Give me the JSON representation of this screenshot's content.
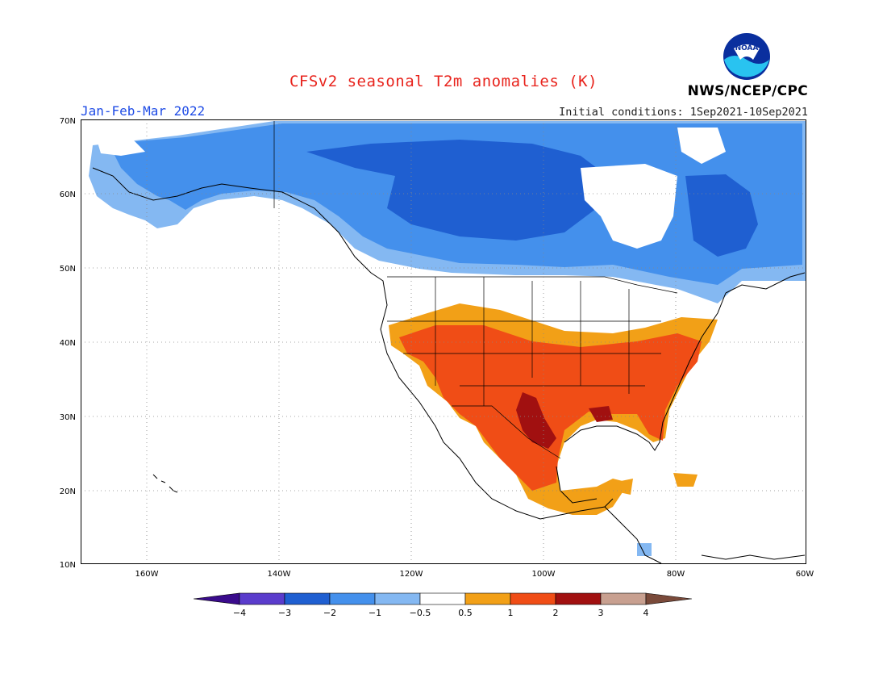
{
  "map": {
    "title": "CFSv2 seasonal T2m anomalies (K)",
    "period": "Jan-Feb-Mar 2022",
    "initial_conditions": "Initial conditions: 1Sep2021-10Sep2021",
    "agency": "NWS/NCEP/CPC",
    "logo_text": "NOAA",
    "lat_labels": [
      "70N",
      "60N",
      "50N",
      "40N",
      "30N",
      "20N",
      "10N"
    ],
    "lon_labels": [
      "160W",
      "140W",
      "120W",
      "100W",
      "80W",
      "60W"
    ],
    "grid": true,
    "colors": {
      "below_-4": "#3a0b8c",
      "-4_-3": "#5a3ccc",
      "-3_-2": "#1f5fd1",
      "-2_-1": "#4490ec",
      "-1_-0.5": "#84b8f2",
      "-0.5_0.5": "#ffffff",
      "0.5_1": "#f2a017",
      "1_2": "#f04d16",
      "2_3": "#a11010",
      "3_4": "#c8a090",
      "above_4": "#7a4a3a"
    },
    "colorbar_labels": [
      "−4",
      "−3",
      "−2",
      "−1",
      "−0.5",
      "0.5",
      "1",
      "2",
      "3",
      "4"
    ]
  }
}
